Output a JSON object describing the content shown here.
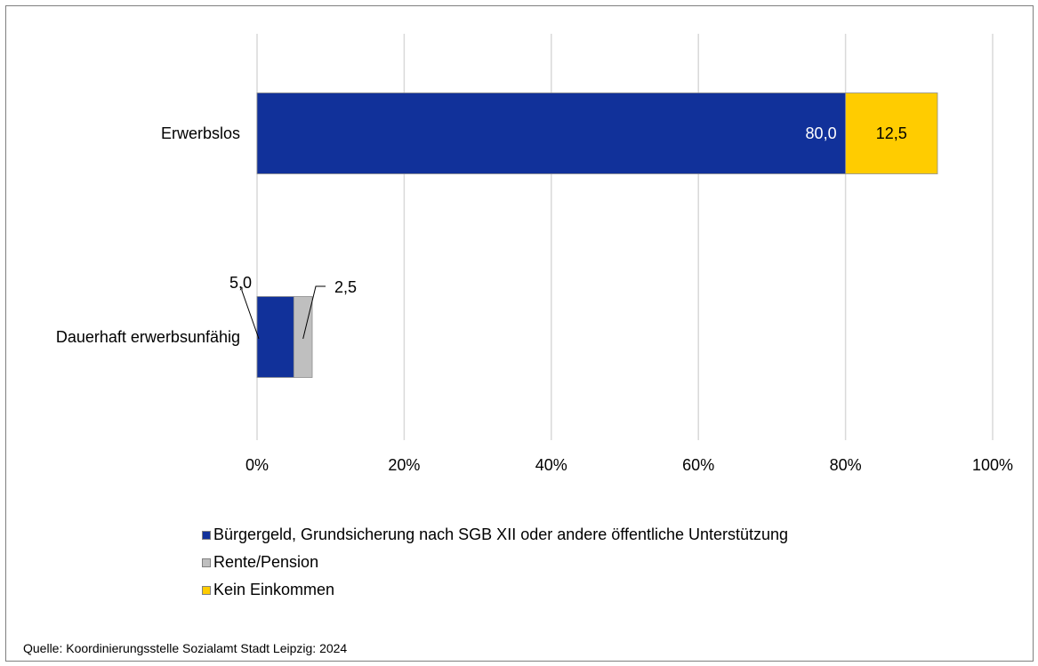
{
  "chart_data": {
    "type": "bar",
    "orientation": "horizontal",
    "stacked": true,
    "categories": [
      "Erwerbslos",
      "Dauerhaft erwerbsunfähig"
    ],
    "series": [
      {
        "name": "Bürgergeld, Grundsicherung nach SGB XII oder andere öffentliche Unterstützung",
        "color": "#11319a",
        "values": [
          80.0,
          5.0
        ],
        "labels": [
          "80,0",
          "5,0"
        ]
      },
      {
        "name": "Rente/Pension",
        "color": "#bfbfbf",
        "values": [
          0,
          2.5
        ],
        "labels": [
          "",
          "2,5"
        ]
      },
      {
        "name": "Kein Einkommen",
        "color": "#ffcc00",
        "values": [
          12.5,
          0
        ],
        "labels": [
          "12,5",
          ""
        ]
      }
    ],
    "xlim": [
      0,
      100
    ],
    "xticks": [
      0,
      20,
      40,
      60,
      80,
      100
    ],
    "xtick_labels": [
      "0%",
      "20%",
      "40%",
      "60%",
      "80%",
      "100%"
    ],
    "grid": "vertical",
    "legend_position": "bottom"
  },
  "source": "Quelle: Koordinierungsstelle Sozialamt Stadt Leipzig: 2024"
}
